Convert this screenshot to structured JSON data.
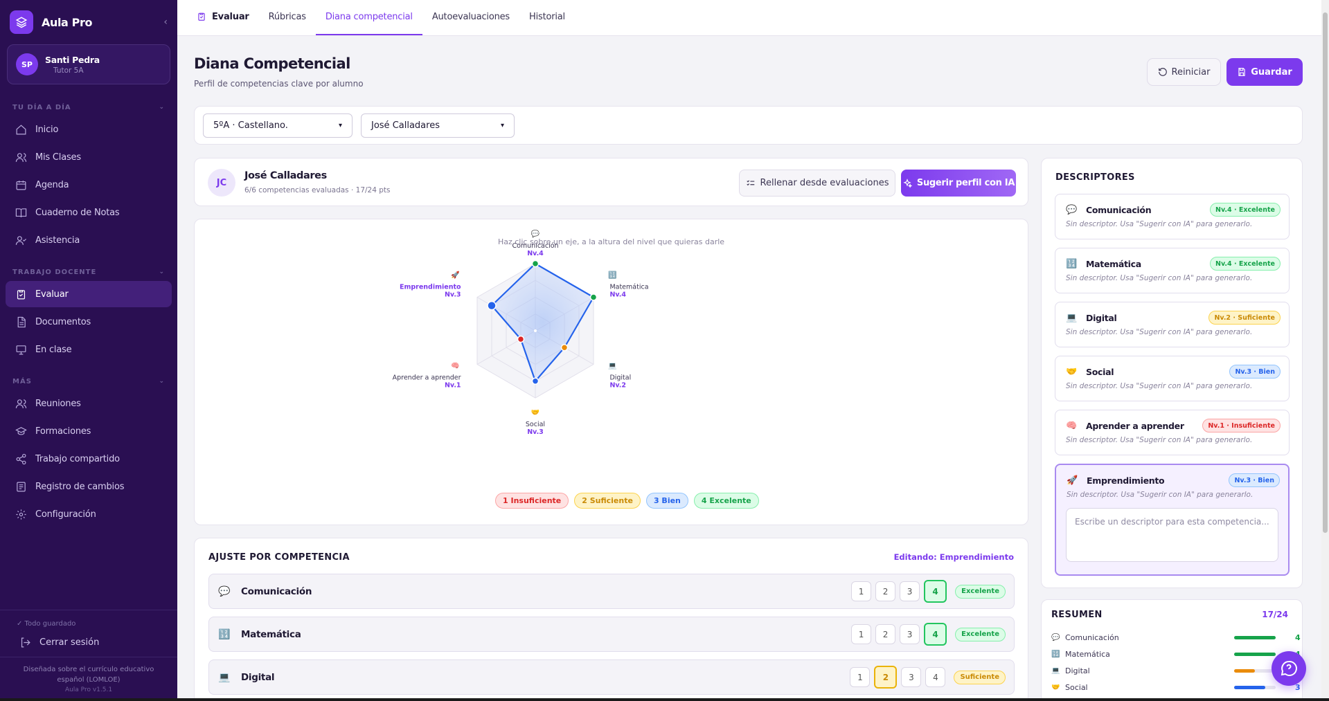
{
  "app": {
    "name": "Aula Pro",
    "logo_icon": "layers-icon"
  },
  "user": {
    "initials": "SP",
    "name": "Santi Pedra",
    "role": "Tutor 5A"
  },
  "sidebar": {
    "sections": [
      {
        "label": "TU DÍA A DÍA",
        "items": [
          {
            "label": "Inicio",
            "icon": "home-icon"
          },
          {
            "label": "Mis Clases",
            "icon": "users-icon"
          },
          {
            "label": "Agenda",
            "icon": "calendar-icon"
          },
          {
            "label": "Cuaderno de Notas",
            "icon": "book-icon"
          },
          {
            "label": "Asistencia",
            "icon": "user-check-icon"
          }
        ]
      },
      {
        "label": "TRABAJO DOCENTE",
        "items": [
          {
            "label": "Evaluar",
            "icon": "clipboard-check-icon",
            "active": true
          },
          {
            "label": "Documentos",
            "icon": "file-icon"
          },
          {
            "label": "En clase",
            "icon": "presentation-icon"
          }
        ]
      },
      {
        "label": "MÁS",
        "items": [
          {
            "label": "Reuniones",
            "icon": "users-icon"
          },
          {
            "label": "Formaciones",
            "icon": "graduation-cap-icon"
          },
          {
            "label": "Trabajo compartido",
            "icon": "share-icon"
          },
          {
            "label": "Registro de cambios",
            "icon": "list-icon"
          },
          {
            "label": "Configuración",
            "icon": "gear-icon"
          }
        ]
      }
    ],
    "saved_status": "✓ Todo guardado",
    "logout": "Cerrar sesión",
    "credits": "Diseñada sobre el currículo educativo español (LOMLOE)",
    "version": "Aula Pro v1.5.1"
  },
  "topbar": {
    "tabs": [
      {
        "label": "Evaluar"
      },
      {
        "label": "Rúbricas"
      },
      {
        "label": "Diana competencial",
        "active": true
      },
      {
        "label": "Autoevaluaciones"
      },
      {
        "label": "Historial"
      }
    ]
  },
  "page": {
    "title": "Diana Competencial",
    "subtitle": "Perfil de competencias clave por alumno",
    "reset_label": "Reiniciar",
    "save_label": "Guardar"
  },
  "filters": {
    "class_value": "5ºA · Castellano.",
    "student_value": "José Calladares"
  },
  "student": {
    "initials": "JC",
    "name": "José Calladares",
    "meta": "6/6 competencias evaluadas · 17/24 pts",
    "fill_button": "Rellenar desde evaluaciones",
    "ai_button": "Sugerir perfil con IA"
  },
  "radar": {
    "hint": "Haz clic sobre un eje, a la altura del nivel que quieras darle",
    "max_level": 4,
    "axes": [
      {
        "name": "Comunicación",
        "emoji": "💬",
        "level_label": "Nv.4",
        "value": 4,
        "color": "#16a34a"
      },
      {
        "name": "Matemática",
        "emoji": "🔢",
        "level_label": "Nv.4",
        "value": 4,
        "color": "#16a34a"
      },
      {
        "name": "Digital",
        "emoji": "💻",
        "level_label": "Nv.2",
        "value": 2,
        "color": "#ea8c0c"
      },
      {
        "name": "Social",
        "emoji": "🤝",
        "level_label": "Nv.3",
        "value": 3,
        "color": "#2563eb"
      },
      {
        "name": "Aprender a aprender",
        "emoji": "🧠",
        "level_label": "Nv.1",
        "value": 1,
        "color": "#dc2626"
      },
      {
        "name": "Emprendimiento",
        "emoji": "🚀",
        "level_label": "Nv.3",
        "value": 3,
        "color": "#2563eb"
      }
    ],
    "legend": [
      {
        "label": "1 Insuficiente",
        "color": "#dc2626",
        "bg": "#fee2e2",
        "border": "#fca5a5"
      },
      {
        "label": "2 Suficiente",
        "color": "#ca8a04",
        "bg": "#fef3c7",
        "border": "#fcd34d"
      },
      {
        "label": "3 Bien",
        "color": "#2563eb",
        "bg": "#dbeafe",
        "border": "#93c5fd"
      },
      {
        "label": "4 Excelente",
        "color": "#16a34a",
        "bg": "#dcfce7",
        "border": "#86efac"
      }
    ]
  },
  "adjust": {
    "title": "AJUSTE POR COMPETENCIA",
    "editing": "Editando: Emprendimiento",
    "rows": [
      {
        "emoji": "💬",
        "name": "Comunicación",
        "level": 4,
        "badge": "Excelente"
      },
      {
        "emoji": "🔢",
        "name": "Matemática",
        "level": 4,
        "badge": "Excelente"
      },
      {
        "emoji": "💻",
        "name": "Digital",
        "level": 2,
        "badge": "Suficiente"
      }
    ]
  },
  "descriptors": {
    "title": "DESCRIPTORES",
    "empty_text": "Sin descriptor. Usa \"Sugerir con IA\" para generarlo.",
    "textarea_placeholder": "Escribe un descriptor para esta competencia...",
    "items": [
      {
        "emoji": "💬",
        "name": "Comunicación",
        "badge": "Nv.4 · Excelente",
        "level": 4
      },
      {
        "emoji": "🔢",
        "name": "Matemática",
        "badge": "Nv.4 · Excelente",
        "level": 4
      },
      {
        "emoji": "💻",
        "name": "Digital",
        "badge": "Nv.2 · Suficiente",
        "level": 2
      },
      {
        "emoji": "🤝",
        "name": "Social",
        "badge": "Nv.3 · Bien",
        "level": 3
      },
      {
        "emoji": "🧠",
        "name": "Aprender a aprender",
        "badge": "Nv.1 · Insuficiente",
        "level": 1
      },
      {
        "emoji": "🚀",
        "name": "Emprendimiento",
        "badge": "Nv.3 · Bien",
        "level": 3,
        "active": true
      }
    ]
  },
  "summary": {
    "title": "RESUMEN",
    "score": "17/24",
    "rows": [
      {
        "emoji": "💬",
        "name": "Comunicación",
        "value": 4
      },
      {
        "emoji": "🔢",
        "name": "Matemática",
        "value": 4
      },
      {
        "emoji": "💻",
        "name": "Digital",
        "value": 2
      },
      {
        "emoji": "🤝",
        "name": "Social",
        "value": 3
      }
    ]
  },
  "level_colors": {
    "1": "#dc2626",
    "2": "#ea8c0c",
    "3": "#2563eb",
    "4": "#16a34a"
  },
  "accent_color": "#7c3aed"
}
